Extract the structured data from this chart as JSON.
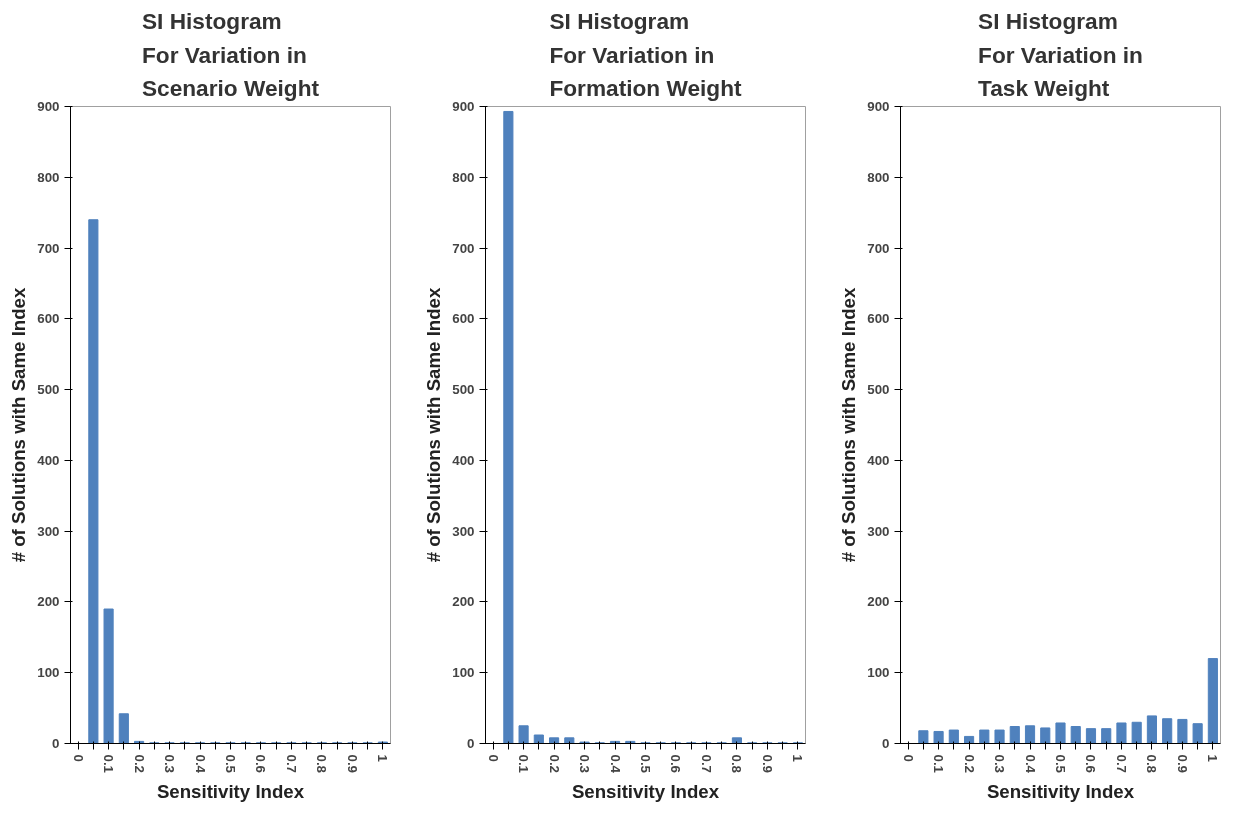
{
  "chart_data": [
    {
      "type": "bar",
      "title": "SI Histogram\nFor Variation in\nScenario Weight",
      "xlabel": "Sensitivity Index",
      "ylabel": "# of Solutions with Same Index",
      "categories": [
        "0",
        null,
        "0.1",
        null,
        "0.2",
        null,
        "0.3",
        null,
        "0.4",
        null,
        "0.5",
        null,
        "0.6",
        null,
        "0.7",
        null,
        "0.8",
        null,
        "0.9",
        null,
        "1"
      ],
      "values": [
        0,
        740,
        190,
        42,
        3,
        1,
        1,
        1,
        1,
        1,
        1,
        1,
        1,
        1,
        1,
        1,
        1,
        1,
        1,
        1,
        2
      ],
      "color": "#4f81bd",
      "ylim": [
        0,
        900
      ],
      "yticks": [
        0,
        100,
        200,
        300,
        400,
        500,
        600,
        700,
        800,
        900
      ],
      "grid": false
    },
    {
      "type": "bar",
      "title": "SI Histogram\nFor Variation in\nFormation Weight",
      "xlabel": "Sensitivity Index",
      "ylabel": "# of Solutions with Same Index",
      "categories": [
        "0",
        null,
        "0.1",
        null,
        "0.2",
        null,
        "0.3",
        null,
        "0.4",
        null,
        "0.5",
        null,
        "0.6",
        null,
        "0.7",
        null,
        "0.8",
        null,
        "0.9",
        null,
        "1"
      ],
      "values": [
        0,
        893,
        25,
        12,
        8,
        8,
        2,
        1,
        3,
        3,
        1,
        1,
        1,
        1,
        1,
        1,
        8,
        1,
        1,
        1,
        1
      ],
      "color": "#4f81bd",
      "ylim": [
        0,
        900
      ],
      "yticks": [
        0,
        100,
        200,
        300,
        400,
        500,
        600,
        700,
        800,
        900
      ],
      "grid": false
    },
    {
      "type": "bar",
      "title": "SI Histogram\nFor Variation in\nTask Weight",
      "xlabel": "Sensitivity Index",
      "ylabel": "# of Solutions with Same Index",
      "categories": [
        "0",
        null,
        "0.1",
        null,
        "0.2",
        null,
        "0.3",
        null,
        "0.4",
        null,
        "0.5",
        null,
        "0.6",
        null,
        "0.7",
        null,
        "0.8",
        null,
        "0.9",
        null,
        "1"
      ],
      "values": [
        0,
        18,
        17,
        19,
        10,
        19,
        19,
        24,
        25,
        22,
        29,
        24,
        21,
        21,
        29,
        30,
        39,
        35,
        34,
        28,
        120
      ],
      "color": "#4f81bd",
      "ylim": [
        0,
        900
      ],
      "yticks": [
        0,
        100,
        200,
        300,
        400,
        500,
        600,
        700,
        800,
        900
      ],
      "grid": false
    }
  ]
}
